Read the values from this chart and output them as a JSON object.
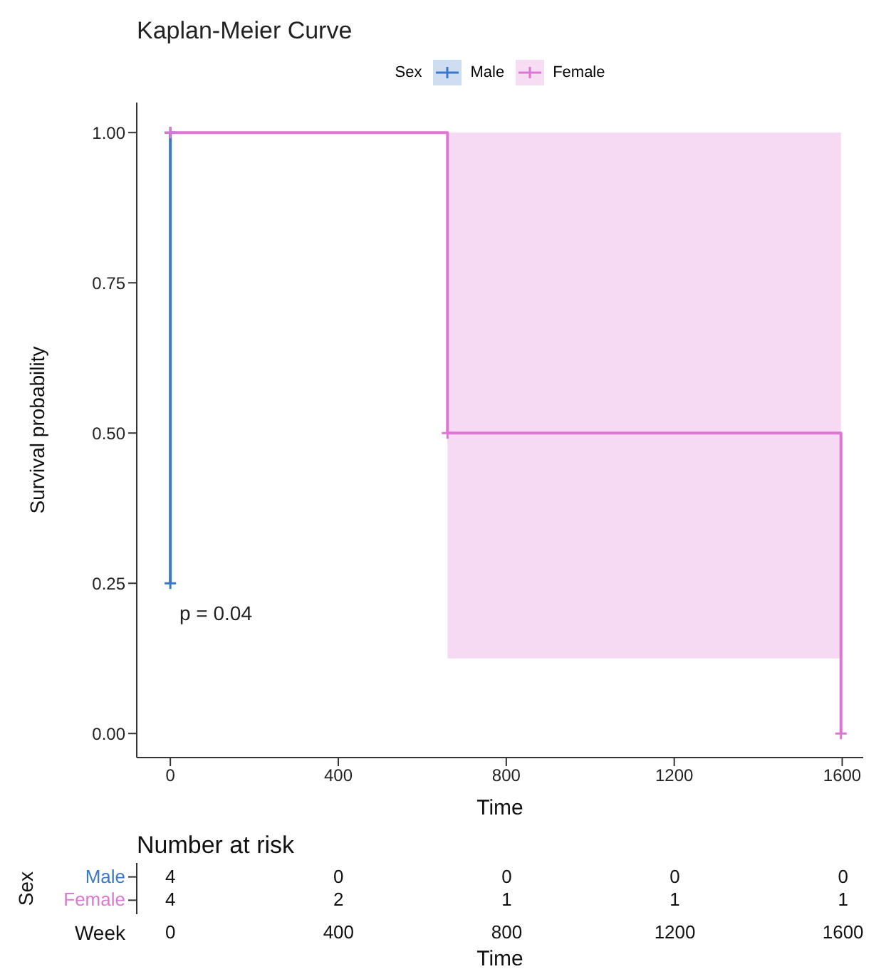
{
  "chart_data": [
    {
      "type": "step",
      "title": "Kaplan-Meier Curve",
      "xlabel": "Time",
      "ylabel": "Survival probability",
      "legend_title": "Sex",
      "legend": "top",
      "grid": false,
      "marker": "cross",
      "line_style": "solid",
      "xlim": [
        -80,
        1650
      ],
      "xticks": [
        0,
        400,
        800,
        1200,
        1600
      ],
      "ylim": [
        -0.04,
        1.05
      ],
      "yticks": [
        {
          "value": 0,
          "label": "0.00"
        },
        {
          "value": 0.25,
          "label": "0.25"
        },
        {
          "value": 0.5,
          "label": "0.50"
        },
        {
          "value": 0.75,
          "label": "0.75"
        },
        {
          "value": 1,
          "label": "1.00"
        }
      ],
      "annotations": [
        "p = 0.04"
      ],
      "series": [
        {
          "name": "Male",
          "color": "#3a78c9",
          "x": [
            0,
            0
          ],
          "values": [
            1,
            0.25
          ]
        },
        {
          "name": "Female",
          "color": "#dd77d4",
          "x": [
            0,
            660,
            1597
          ],
          "values": [
            1,
            0.5,
            0
          ],
          "lower": [
            1,
            0.125,
            0.125
          ],
          "upper": [
            1,
            1,
            1
          ]
        }
      ]
    },
    {
      "type": "heatmap",
      "title": "Number at risk",
      "xlabel": "Time",
      "ylabel": "Sex",
      "data_labels": true,
      "annotations": [
        "Week"
      ],
      "categories": [
        "0",
        "400",
        "800",
        "1200",
        "1600"
      ],
      "y_categories": [
        "Male",
        "Female"
      ],
      "cells": [
        [
          4,
          0,
          0,
          0,
          0
        ],
        [
          4,
          2,
          1,
          1,
          1
        ]
      ]
    }
  ]
}
